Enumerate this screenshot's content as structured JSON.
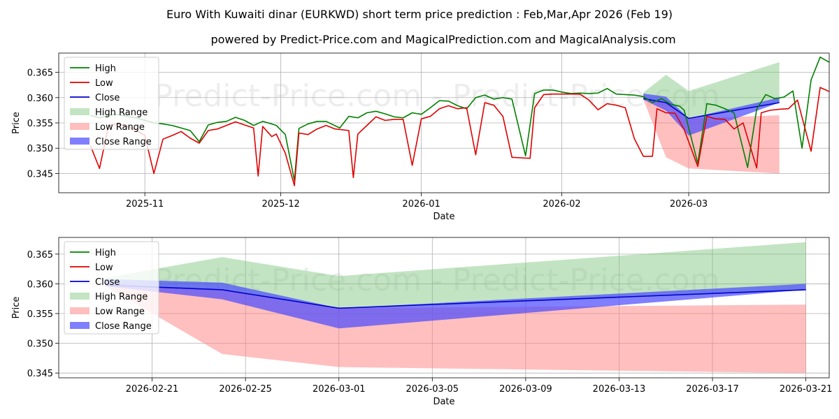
{
  "title_line1": "Euro With Kuwaiti dinar (EURKWD) short term price prediction : Feb,Mar,Apr 2026 (Feb 19)",
  "title_line2": "powered by Predict-Price.com and MagicalPrediction.com and MagicalAnalysis.com",
  "watermark": "Predict-Price.com",
  "colors": {
    "high": "#008000",
    "low": "#e00000",
    "close": "#0000cc",
    "high_range": "#78c478",
    "low_range": "#ff8080",
    "close_range": "#4848ff"
  },
  "legend": [
    "High",
    "Low",
    "Close",
    "High Range",
    "Low Range",
    "Close Range"
  ],
  "chart_data": [
    {
      "type": "line",
      "panel": "history",
      "xlabel": "Date",
      "ylabel": "Price",
      "x_domain": [
        "2025-10-13",
        "2026-04-01"
      ],
      "ylim": [
        0.3412,
        0.3688
      ],
      "yticks": [
        0.345,
        0.35,
        0.355,
        0.36,
        0.365
      ],
      "ytick_labels": [
        "0.345",
        "0.350",
        "0.355",
        "0.360",
        "0.365"
      ],
      "xticks": [
        "2025-11-01",
        "2025-12-01",
        "2026-01-01",
        "2026-02-01",
        "2026-03-01"
      ],
      "xtick_labels": [
        "2025-11",
        "2025-12",
        "2026-01",
        "2026-02",
        "2026-03"
      ],
      "series": [
        {
          "name": "High",
          "points": [
            [
              "2025-10-20",
              0.3565
            ],
            [
              "2025-10-22",
              0.356
            ],
            [
              "2025-10-24",
              0.3565
            ],
            [
              "2025-10-26",
              0.3567
            ],
            [
              "2025-10-28",
              0.3563
            ],
            [
              "2025-10-30",
              0.356
            ],
            [
              "2025-11-01",
              0.3555
            ],
            [
              "2025-11-03",
              0.355
            ],
            [
              "2025-11-05",
              0.3548
            ],
            [
              "2025-11-07",
              0.3545
            ],
            [
              "2025-11-09",
              0.354
            ],
            [
              "2025-11-11",
              0.3535
            ],
            [
              "2025-11-13",
              0.3513
            ],
            [
              "2025-11-15",
              0.3546
            ],
            [
              "2025-11-17",
              0.3551
            ],
            [
              "2025-11-19",
              0.3553
            ],
            [
              "2025-11-21",
              0.3561
            ],
            [
              "2025-11-23",
              0.3555
            ],
            [
              "2025-11-25",
              0.3545
            ],
            [
              "2025-11-27",
              0.3553
            ],
            [
              "2025-11-29",
              0.3548
            ],
            [
              "2025-11-30",
              0.3545
            ],
            [
              "2025-12-02",
              0.3527
            ],
            [
              "2025-12-04",
              0.3436
            ],
            [
              "2025-12-05",
              0.3539
            ],
            [
              "2025-12-07",
              0.3548
            ],
            [
              "2025-12-09",
              0.3553
            ],
            [
              "2025-12-11",
              0.3553
            ],
            [
              "2025-12-14",
              0.354
            ],
            [
              "2025-12-16",
              0.3563
            ],
            [
              "2025-12-18",
              0.356
            ],
            [
              "2025-12-20",
              0.357
            ],
            [
              "2025-12-22",
              0.3573
            ],
            [
              "2025-12-24",
              0.3568
            ],
            [
              "2025-12-26",
              0.3562
            ],
            [
              "2025-12-28",
              0.356
            ],
            [
              "2025-12-30",
              0.357
            ],
            [
              "2026-01-01",
              0.3567
            ],
            [
              "2026-01-03",
              0.358
            ],
            [
              "2026-01-05",
              0.3594
            ],
            [
              "2026-01-07",
              0.3593
            ],
            [
              "2026-01-09",
              0.3584
            ],
            [
              "2026-01-11",
              0.3578
            ],
            [
              "2026-01-13",
              0.36
            ],
            [
              "2026-01-15",
              0.3605
            ],
            [
              "2026-01-17",
              0.3597
            ],
            [
              "2026-01-19",
              0.36
            ],
            [
              "2026-01-21",
              0.3597
            ],
            [
              "2026-01-24",
              0.3485
            ],
            [
              "2026-01-26",
              0.3608
            ],
            [
              "2026-01-28",
              0.3615
            ],
            [
              "2026-01-30",
              0.3615
            ],
            [
              "2026-02-01",
              0.3611
            ],
            [
              "2026-02-03",
              0.3608
            ],
            [
              "2026-02-05",
              0.3609
            ],
            [
              "2026-02-07",
              0.3608
            ],
            [
              "2026-02-09",
              0.3609
            ],
            [
              "2026-02-11",
              0.3618
            ],
            [
              "2026-02-13",
              0.3607
            ],
            [
              "2026-02-15",
              0.3606
            ],
            [
              "2026-02-17",
              0.3605
            ],
            [
              "2026-02-19",
              0.3602
            ],
            [
              "2026-02-21",
              0.359
            ],
            [
              "2026-02-23",
              0.3598
            ],
            [
              "2026-02-25",
              0.3587
            ],
            [
              "2026-02-27",
              0.3583
            ],
            [
              "2026-02-28",
              0.3575
            ],
            [
              "2026-03-03",
              0.347
            ],
            [
              "2026-03-05",
              0.3588
            ],
            [
              "2026-03-07",
              0.3585
            ],
            [
              "2026-03-09",
              0.3578
            ],
            [
              "2026-03-11",
              0.357
            ],
            [
              "2026-03-14",
              0.3462
            ],
            [
              "2026-03-16",
              0.3577
            ],
            [
              "2026-03-18",
              0.3606
            ],
            [
              "2026-03-20",
              0.3598
            ],
            [
              "2026-03-22",
              0.3601
            ],
            [
              "2026-03-24",
              0.3613
            ],
            [
              "2026-03-26",
              0.35
            ],
            [
              "2026-03-28",
              0.3635
            ],
            [
              "2026-03-30",
              0.368
            ],
            [
              "2026-04-01",
              0.367
            ]
          ]
        },
        {
          "name": "Low",
          "points": [
            [
              "2025-10-20",
              0.3505
            ],
            [
              "2025-10-22",
              0.346
            ],
            [
              "2025-10-24",
              0.3545
            ],
            [
              "2025-10-26",
              0.3548
            ],
            [
              "2025-10-28",
              0.3543
            ],
            [
              "2025-10-30",
              0.3536
            ],
            [
              "2025-11-01",
              0.3525
            ],
            [
              "2025-11-03",
              0.345
            ],
            [
              "2025-11-05",
              0.3518
            ],
            [
              "2025-11-07",
              0.3525
            ],
            [
              "2025-11-09",
              0.3533
            ],
            [
              "2025-11-11",
              0.352
            ],
            [
              "2025-11-13",
              0.351
            ],
            [
              "2025-11-15",
              0.3535
            ],
            [
              "2025-11-17",
              0.3538
            ],
            [
              "2025-11-19",
              0.3545
            ],
            [
              "2025-11-21",
              0.3552
            ],
            [
              "2025-11-23",
              0.3546
            ],
            [
              "2025-11-25",
              0.354
            ],
            [
              "2025-11-26",
              0.3445
            ],
            [
              "2025-11-27",
              0.3543
            ],
            [
              "2025-11-29",
              0.3523
            ],
            [
              "2025-11-30",
              0.3528
            ],
            [
              "2025-12-02",
              0.349
            ],
            [
              "2025-12-04",
              0.3426
            ],
            [
              "2025-12-05",
              0.353
            ],
            [
              "2025-12-07",
              0.3527
            ],
            [
              "2025-12-09",
              0.3538
            ],
            [
              "2025-12-11",
              0.3545
            ],
            [
              "2025-12-13",
              0.3538
            ],
            [
              "2025-12-16",
              0.3535
            ],
            [
              "2025-12-17",
              0.3442
            ],
            [
              "2025-12-18",
              0.3528
            ],
            [
              "2025-12-20",
              0.3545
            ],
            [
              "2025-12-22",
              0.3562
            ],
            [
              "2025-12-24",
              0.3555
            ],
            [
              "2025-12-26",
              0.3557
            ],
            [
              "2025-12-28",
              0.3557
            ],
            [
              "2025-12-30",
              0.3466
            ],
            [
              "2026-01-01",
              0.3558
            ],
            [
              "2026-01-03",
              0.3563
            ],
            [
              "2026-01-05",
              0.3578
            ],
            [
              "2026-01-07",
              0.3584
            ],
            [
              "2026-01-09",
              0.3578
            ],
            [
              "2026-01-11",
              0.358
            ],
            [
              "2026-01-13",
              0.3487
            ],
            [
              "2026-01-15",
              0.359
            ],
            [
              "2026-01-17",
              0.3585
            ],
            [
              "2026-01-19",
              0.3563
            ],
            [
              "2026-01-21",
              0.3482
            ],
            [
              "2026-01-23",
              0.3481
            ],
            [
              "2026-01-25",
              0.348
            ],
            [
              "2026-01-26",
              0.358
            ],
            [
              "2026-01-28",
              0.3606
            ],
            [
              "2026-01-30",
              0.3607
            ],
            [
              "2026-02-01",
              0.3607
            ],
            [
              "2026-02-03",
              0.3607
            ],
            [
              "2026-02-05",
              0.3607
            ],
            [
              "2026-02-07",
              0.3595
            ],
            [
              "2026-02-09",
              0.3576
            ],
            [
              "2026-02-11",
              0.3588
            ],
            [
              "2026-02-13",
              0.3585
            ],
            [
              "2026-02-15",
              0.358
            ],
            [
              "2026-02-17",
              0.3519
            ],
            [
              "2026-02-19",
              0.3484
            ],
            [
              "2026-02-21",
              0.3484
            ],
            [
              "2026-02-22",
              0.3578
            ],
            [
              "2026-02-24",
              0.357
            ],
            [
              "2026-02-26",
              0.3569
            ],
            [
              "2026-02-28",
              0.3537
            ],
            [
              "2026-03-03",
              0.3464
            ],
            [
              "2026-03-05",
              0.3563
            ],
            [
              "2026-03-07",
              0.3558
            ],
            [
              "2026-03-09",
              0.3557
            ],
            [
              "2026-03-11",
              0.3538
            ],
            [
              "2026-03-13",
              0.355
            ],
            [
              "2026-03-16",
              0.3461
            ],
            [
              "2026-03-17",
              0.357
            ],
            [
              "2026-03-19",
              0.3575
            ],
            [
              "2026-03-21",
              0.3577
            ],
            [
              "2026-03-23",
              0.3578
            ],
            [
              "2026-03-25",
              0.3595
            ],
            [
              "2026-03-28",
              0.3494
            ],
            [
              "2026-03-30",
              0.362
            ],
            [
              "2026-04-01",
              0.3612
            ]
          ]
        }
      ]
    },
    {
      "type": "line",
      "panel": "forecast",
      "xlabel": "Date",
      "ylabel": "Price",
      "x_domain": [
        "2026-02-17",
        "2026-03-22"
      ],
      "ylim": [
        0.3442,
        0.3678
      ],
      "yticks": [
        0.345,
        0.35,
        0.355,
        0.36,
        0.365
      ],
      "ytick_labels": [
        "0.345",
        "0.350",
        "0.355",
        "0.360",
        "0.365"
      ],
      "xticks": [
        "2026-02-21",
        "2026-02-25",
        "2026-03-01",
        "2026-03-05",
        "2026-03-09",
        "2026-03-13",
        "2026-03-17",
        "2026-03-21"
      ],
      "xtick_labels": [
        "2026-02-21",
        "2026-02-25",
        "2026-03-01",
        "2026-03-05",
        "2026-03-09",
        "2026-03-13",
        "2026-03-17",
        "2026-03-21"
      ],
      "forecast_dates": [
        "2026-02-19",
        "2026-02-24",
        "2026-03-01",
        "2026-03-21"
      ],
      "series": [
        {
          "name": "Close",
          "values": [
            0.3598,
            0.359,
            0.3559,
            0.359
          ]
        },
        {
          "name": "High Range",
          "upper": [
            0.361,
            0.3645,
            0.3613,
            0.367
          ],
          "lower": [
            0.3598,
            0.359,
            0.3559,
            0.359
          ]
        },
        {
          "name": "Low Range",
          "upper": [
            0.3598,
            0.359,
            0.3559,
            0.3565
          ],
          "lower": [
            0.3596,
            0.3482,
            0.346,
            0.345
          ]
        },
        {
          "name": "Close Range",
          "upper": [
            0.3608,
            0.3602,
            0.3559,
            0.36
          ],
          "lower": [
            0.3596,
            0.3574,
            0.3525,
            0.359
          ]
        }
      ]
    }
  ]
}
